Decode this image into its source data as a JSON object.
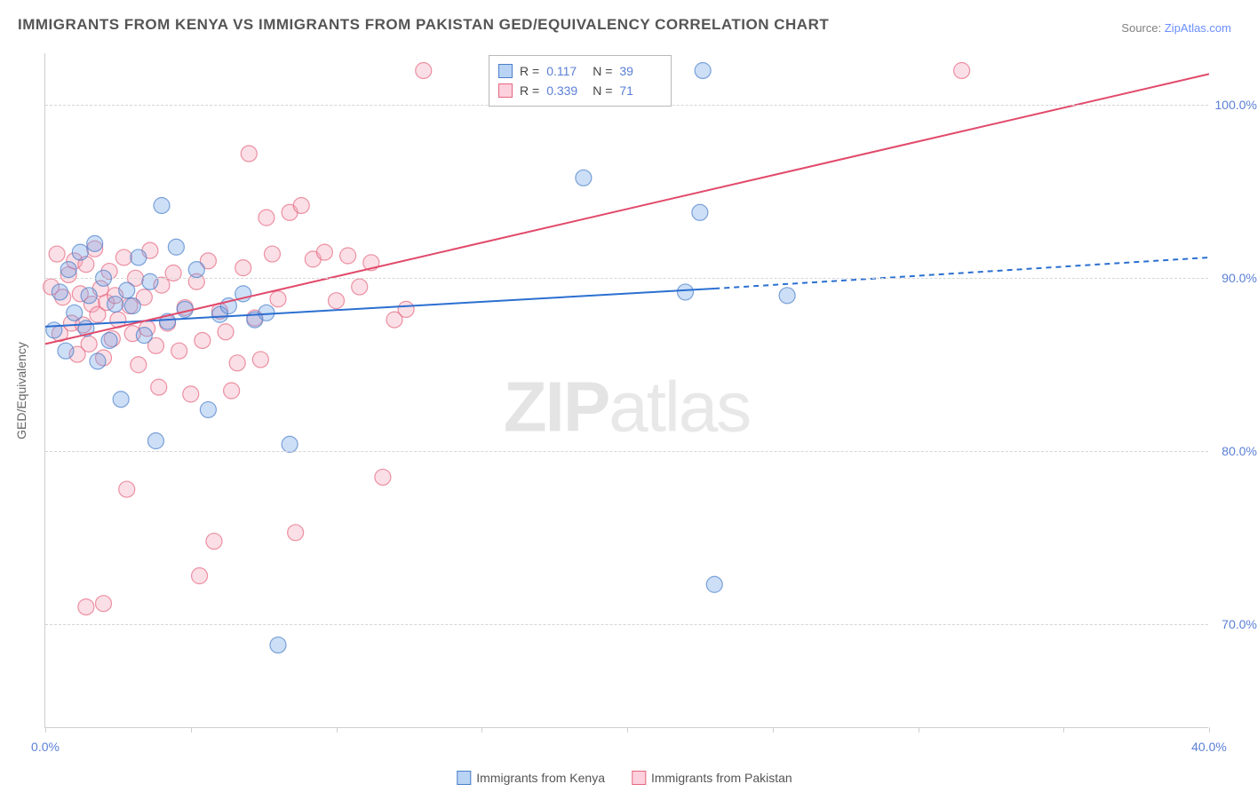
{
  "title": "IMMIGRANTS FROM KENYA VS IMMIGRANTS FROM PAKISTAN GED/EQUIVALENCY CORRELATION CHART",
  "source_label": "Source:",
  "source_name": "ZipAtlas.com",
  "ylabel": "GED/Equivalency",
  "watermark": {
    "bold": "ZIP",
    "rest": "atlas"
  },
  "chart": {
    "type": "scatter",
    "xlim": [
      0,
      40
    ],
    "ylim": [
      64,
      103
    ],
    "xtick_positions": [
      0,
      5,
      10,
      15,
      20,
      25,
      30,
      35,
      40
    ],
    "xtick_labels": {
      "0": "0.0%",
      "40": "40.0%"
    },
    "ytick_positions": [
      70,
      80,
      90,
      100
    ],
    "ytick_labels": [
      "70.0%",
      "80.0%",
      "90.0%",
      "100.0%"
    ],
    "marker_radius": 9,
    "marker_opacity": 0.35,
    "background_color": "#ffffff",
    "grid_color": "#d5d5d5",
    "axis_color": "#cfcfcf",
    "tick_label_color": "#5a7fd6",
    "series": [
      {
        "name": "Immigrants from Kenya",
        "color_fill": "#6fa3e8",
        "color_stroke": "#4a7fc9",
        "R": "0.117",
        "N": "39",
        "trend": {
          "x1": 0,
          "y1": 87.2,
          "x2": 23,
          "y2": 89.4,
          "x2_ext": 40,
          "y2_ext": 91.2,
          "stroke": "#2b6fd1",
          "width": 2
        },
        "points": [
          [
            0.3,
            87.0
          ],
          [
            0.5,
            89.2
          ],
          [
            0.7,
            85.8
          ],
          [
            0.8,
            90.5
          ],
          [
            1.0,
            88.0
          ],
          [
            1.2,
            91.5
          ],
          [
            1.4,
            87.1
          ],
          [
            1.5,
            89.0
          ],
          [
            1.7,
            92.0
          ],
          [
            1.8,
            85.2
          ],
          [
            2.0,
            90.0
          ],
          [
            2.2,
            86.4
          ],
          [
            2.4,
            88.5
          ],
          [
            2.6,
            83.0
          ],
          [
            2.8,
            89.3
          ],
          [
            3.0,
            88.4
          ],
          [
            3.2,
            91.2
          ],
          [
            3.4,
            86.7
          ],
          [
            3.6,
            89.8
          ],
          [
            3.8,
            80.6
          ],
          [
            4.0,
            94.2
          ],
          [
            4.2,
            87.5
          ],
          [
            4.5,
            91.8
          ],
          [
            4.8,
            88.2
          ],
          [
            5.2,
            90.5
          ],
          [
            5.6,
            82.4
          ],
          [
            6.0,
            87.9
          ],
          [
            6.3,
            88.4
          ],
          [
            6.8,
            89.1
          ],
          [
            7.2,
            87.6
          ],
          [
            7.6,
            88.0
          ],
          [
            8.0,
            68.8
          ],
          [
            8.4,
            80.4
          ],
          [
            18.5,
            95.8
          ],
          [
            22.0,
            89.2
          ],
          [
            22.5,
            93.8
          ],
          [
            22.6,
            102.0
          ],
          [
            23.0,
            72.3
          ],
          [
            25.5,
            89.0
          ]
        ]
      },
      {
        "name": "Immigrants from Pakistan",
        "color_fill": "#f4a3b8",
        "color_stroke": "#e5677f",
        "R": "0.339",
        "N": "71",
        "trend": {
          "x1": 0,
          "y1": 86.2,
          "x2": 40,
          "y2": 101.8,
          "stroke": "#e14a6b",
          "width": 2
        },
        "points": [
          [
            0.2,
            89.5
          ],
          [
            0.4,
            91.4
          ],
          [
            0.5,
            86.8
          ],
          [
            0.6,
            88.9
          ],
          [
            0.8,
            90.2
          ],
          [
            0.9,
            87.4
          ],
          [
            1.0,
            91.0
          ],
          [
            1.1,
            85.6
          ],
          [
            1.2,
            89.1
          ],
          [
            1.3,
            87.3
          ],
          [
            1.4,
            90.8
          ],
          [
            1.5,
            86.2
          ],
          [
            1.6,
            88.5
          ],
          [
            1.7,
            91.7
          ],
          [
            1.8,
            87.9
          ],
          [
            1.9,
            89.4
          ],
          [
            2.0,
            85.4
          ],
          [
            2.1,
            88.6
          ],
          [
            2.2,
            90.4
          ],
          [
            2.3,
            86.5
          ],
          [
            2.4,
            89.0
          ],
          [
            2.5,
            87.6
          ],
          [
            2.7,
            91.2
          ],
          [
            2.8,
            77.8
          ],
          [
            2.9,
            88.4
          ],
          [
            3.0,
            86.8
          ],
          [
            3.1,
            90.0
          ],
          [
            3.2,
            85.0
          ],
          [
            3.4,
            88.9
          ],
          [
            3.5,
            87.1
          ],
          [
            3.6,
            91.6
          ],
          [
            3.8,
            86.1
          ],
          [
            3.9,
            83.7
          ],
          [
            4.0,
            89.6
          ],
          [
            4.2,
            87.4
          ],
          [
            4.4,
            90.3
          ],
          [
            4.6,
            85.8
          ],
          [
            4.8,
            88.3
          ],
          [
            5.0,
            83.3
          ],
          [
            5.2,
            89.8
          ],
          [
            5.4,
            86.4
          ],
          [
            5.6,
            91.0
          ],
          [
            5.8,
            74.8
          ],
          [
            6.0,
            88.1
          ],
          [
            6.2,
            86.9
          ],
          [
            6.4,
            83.5
          ],
          [
            6.6,
            85.1
          ],
          [
            6.8,
            90.6
          ],
          [
            7.0,
            97.2
          ],
          [
            7.2,
            87.7
          ],
          [
            7.4,
            85.3
          ],
          [
            7.6,
            93.5
          ],
          [
            7.8,
            91.4
          ],
          [
            8.0,
            88.8
          ],
          [
            8.4,
            93.8
          ],
          [
            8.8,
            94.2
          ],
          [
            9.2,
            91.1
          ],
          [
            9.6,
            91.5
          ],
          [
            10.0,
            88.7
          ],
          [
            10.4,
            91.3
          ],
          [
            10.8,
            89.5
          ],
          [
            11.2,
            90.9
          ],
          [
            11.6,
            78.5
          ],
          [
            12.0,
            87.6
          ],
          [
            12.4,
            88.2
          ],
          [
            1.4,
            71.0
          ],
          [
            2.0,
            71.2
          ],
          [
            5.3,
            72.8
          ],
          [
            13.0,
            102.0
          ],
          [
            31.5,
            102.0
          ],
          [
            8.6,
            75.3
          ]
        ]
      }
    ]
  },
  "legend": {
    "series1": "Immigrants from Kenya",
    "series2": "Immigrants from Pakistan"
  },
  "stats_box": {
    "R_label": "R  =",
    "N_label": "N  ="
  }
}
